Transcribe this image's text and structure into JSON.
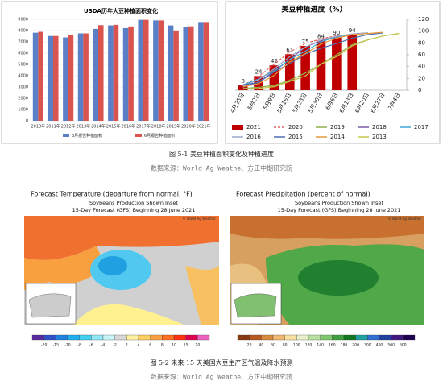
{
  "chart_data": [
    {
      "type": "bar",
      "title": "USDA历年大豆种植面积变化",
      "categories": [
        "2010年",
        "2011年",
        "2012年",
        "2013年",
        "2014年",
        "2015年",
        "2016年",
        "2017年",
        "2018年",
        "2019年",
        "2020年",
        "2021年"
      ],
      "series": [
        {
          "name": "3月报告种植面积",
          "color": "#5b7fc7",
          "values": [
            7810,
            7520,
            7390,
            7750,
            8150,
            8460,
            8220,
            8950,
            8900,
            8460,
            8350,
            8760
          ]
        },
        {
          "name": "6月报告种植面积",
          "color": "#d9534f",
          "values": [
            7890,
            7520,
            7610,
            7750,
            8480,
            8510,
            8370,
            8950,
            8900,
            8010,
            8380,
            8760
          ]
        }
      ],
      "ylim": [
        0,
        9000
      ],
      "yticks": [
        0,
        1000,
        2000,
        3000,
        4000,
        5000,
        6000,
        7000,
        8000,
        9000
      ],
      "grid": true
    },
    {
      "type": "bar_line",
      "title": "美豆种植进度（%）",
      "categories": [
        "4月25日",
        "5月2日",
        "5月9日",
        "5月16日",
        "5月23日",
        "5月30日",
        "6月6日",
        "6月13日",
        "6月20日",
        "6月27日",
        "7月4日"
      ],
      "series": [
        {
          "name": "2021",
          "kind": "bar",
          "color": "#c00000",
          "values": [
            8,
            24,
            42,
            61,
            75,
            84,
            90,
            94,
            null,
            null,
            null
          ]
        },
        {
          "name": "2020",
          "kind": "line",
          "dash": true,
          "color": "#e06060",
          "values": [
            8,
            23,
            44,
            65,
            79,
            87,
            92,
            95,
            97,
            null,
            null
          ]
        },
        {
          "name": "2019",
          "kind": "line",
          "color": "#8fb04a",
          "values": [
            3,
            5,
            8,
            17,
            29,
            44,
            60,
            77,
            85,
            92,
            96
          ]
        },
        {
          "name": "2018",
          "kind": "line",
          "color": "#7a5ca8",
          "values": [
            5,
            14,
            32,
            52,
            73,
            84,
            91,
            95,
            97,
            null,
            null
          ]
        },
        {
          "name": "2017",
          "kind": "line",
          "color": "#3fa7d6",
          "values": [
            9,
            19,
            33,
            52,
            66,
            82,
            90,
            94,
            97,
            null,
            null
          ]
        },
        {
          "name": "2016",
          "kind": "line",
          "color": "#9aa9c8",
          "values": [
            7,
            18,
            36,
            57,
            73,
            85,
            91,
            95,
            97,
            null,
            null
          ]
        },
        {
          "name": "2015",
          "kind": "line",
          "color": "#4a6fb0",
          "values": [
            9,
            13,
            31,
            45,
            61,
            71,
            79,
            88,
            94,
            97,
            null
          ]
        },
        {
          "name": "2014",
          "kind": "line",
          "color": "#e69a3c",
          "values": [
            6,
            11,
            25,
            48,
            62,
            78,
            88,
            94,
            96,
            98,
            null
          ]
        },
        {
          "name": "2013",
          "kind": "line",
          "color": "#c8c84a",
          "values": [
            2,
            3,
            6,
            15,
            24,
            44,
            57,
            75,
            85,
            92,
            96
          ]
        }
      ],
      "ylim": [
        0,
        120
      ],
      "yticks": [
        0,
        20,
        40,
        60,
        80,
        100,
        120
      ],
      "grid": false
    }
  ],
  "caption1": "图 5-1 美豆种植面积变化及种植进度",
  "source1": "数据来源：World Ag Weathe、方正中期研究院",
  "maps": [
    {
      "title": "Forecast Temperature (departure from normal, °F)",
      "subtitle1": "Soybeans Production Shown Inset",
      "subtitle2": "15-Day Forecast (GFS) Beginning 28 June 2021",
      "credit": "© World Ag Weather",
      "colorbar": [
        "-20",
        "-15",
        "-10",
        "-8",
        "-6",
        "-4",
        "-2",
        "2",
        "4",
        "6",
        "8",
        "10",
        "15",
        "20"
      ],
      "colors": [
        "#5a2ca0",
        "#3050c8",
        "#2080e0",
        "#20b0f0",
        "#40d0f0",
        "#90e8f8",
        "#c8f4f8",
        "#d8d8d8",
        "#fff0a0",
        "#ffd060",
        "#ffa040",
        "#ff7020",
        "#ff3010",
        "#e00050",
        "#f060c0"
      ]
    },
    {
      "title": "Forecast Precipitation (percent of normal)",
      "subtitle1": "Soybeans Production Shown Inset",
      "subtitle2": "15-Day Forecast (GFS) Beginning 28 June 2021",
      "credit": "© World Ag Weather",
      "colorbar": [
        "20",
        "40",
        "60",
        "80",
        "100",
        "120",
        "140",
        "160",
        "180",
        "200",
        "300",
        "400",
        "500",
        "600"
      ],
      "colors": [
        "#8a3a10",
        "#b85a20",
        "#d88a40",
        "#f0b870",
        "#f8e0a0",
        "#e8f0c8",
        "#b8e0a0",
        "#80c870",
        "#40a040",
        "#107820",
        "#20a0a0",
        "#3070d0",
        "#2040a0",
        "#401880",
        "#200050"
      ]
    }
  ],
  "caption2": "图 5-2 未来 15 天美国大豆主产区气温及降水预测",
  "source2": "数据来源：World Ag Weathe、方正中期研究院"
}
